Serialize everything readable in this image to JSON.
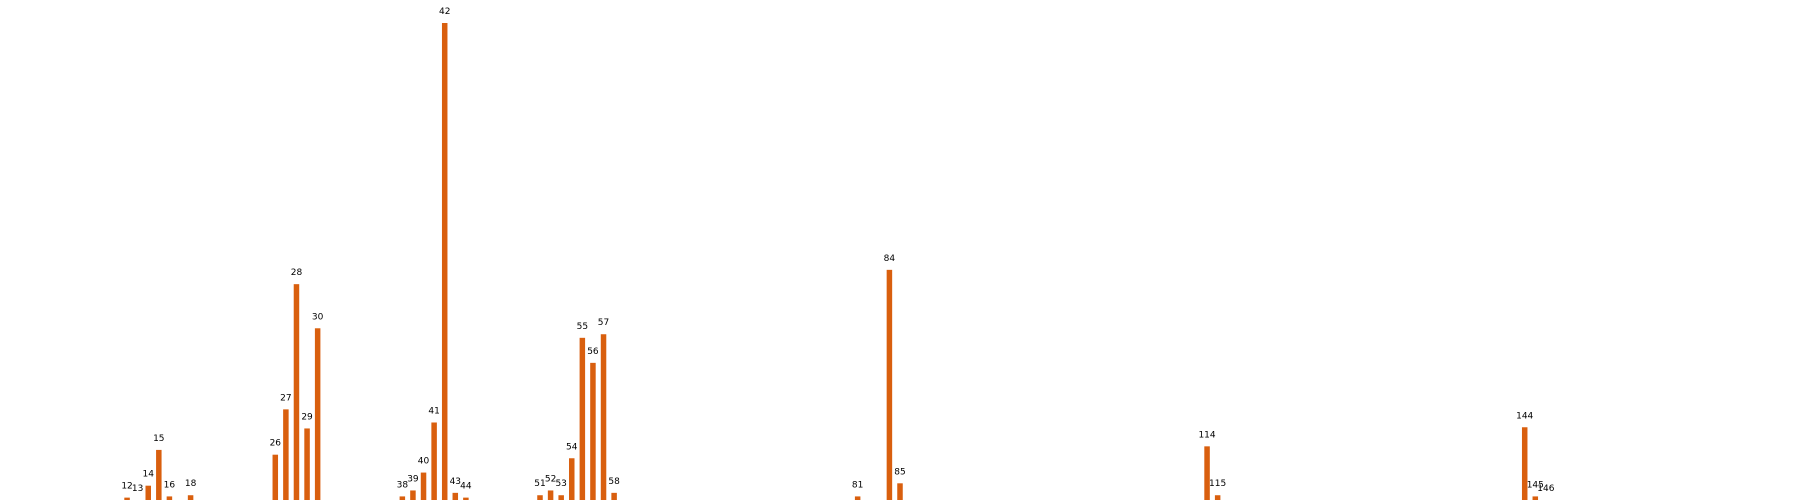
{
  "chart_data": {
    "type": "bar",
    "title": "",
    "xlabel": "",
    "ylabel": "",
    "xlim": [
      0,
      170
    ],
    "ylim": [
      0,
      40
    ],
    "grid": false,
    "legend": "none",
    "bar_color": "#d95f0e",
    "categories": [
      "12",
      "13",
      "14",
      "15",
      "16",
      "18",
      "26",
      "27",
      "28",
      "29",
      "30",
      "38",
      "39",
      "40",
      "41",
      "42",
      "43",
      "44",
      "51",
      "52",
      "53",
      "54",
      "55",
      "56",
      "57",
      "58",
      "81",
      "84",
      "85",
      "114",
      "115",
      "144",
      "145",
      "146"
    ],
    "x": [
      12,
      13,
      14,
      15,
      16,
      18,
      26,
      27,
      28,
      29,
      30,
      38,
      39,
      40,
      41,
      42,
      43,
      44,
      51,
      52,
      53,
      54,
      55,
      56,
      57,
      58,
      81,
      84,
      85,
      114,
      115,
      144,
      145,
      146
    ],
    "values": [
      0.2,
      0.0,
      1.2,
      4.2,
      0.3,
      0.4,
      3.8,
      7.6,
      18.1,
      6.0,
      14.4,
      0.3,
      0.8,
      2.3,
      6.5,
      40.0,
      0.6,
      0.2,
      0.4,
      0.8,
      0.4,
      3.5,
      13.6,
      11.5,
      13.9,
      0.6,
      0.3,
      19.3,
      1.4,
      4.5,
      0.4,
      6.1,
      0.3,
      0.0
    ]
  }
}
